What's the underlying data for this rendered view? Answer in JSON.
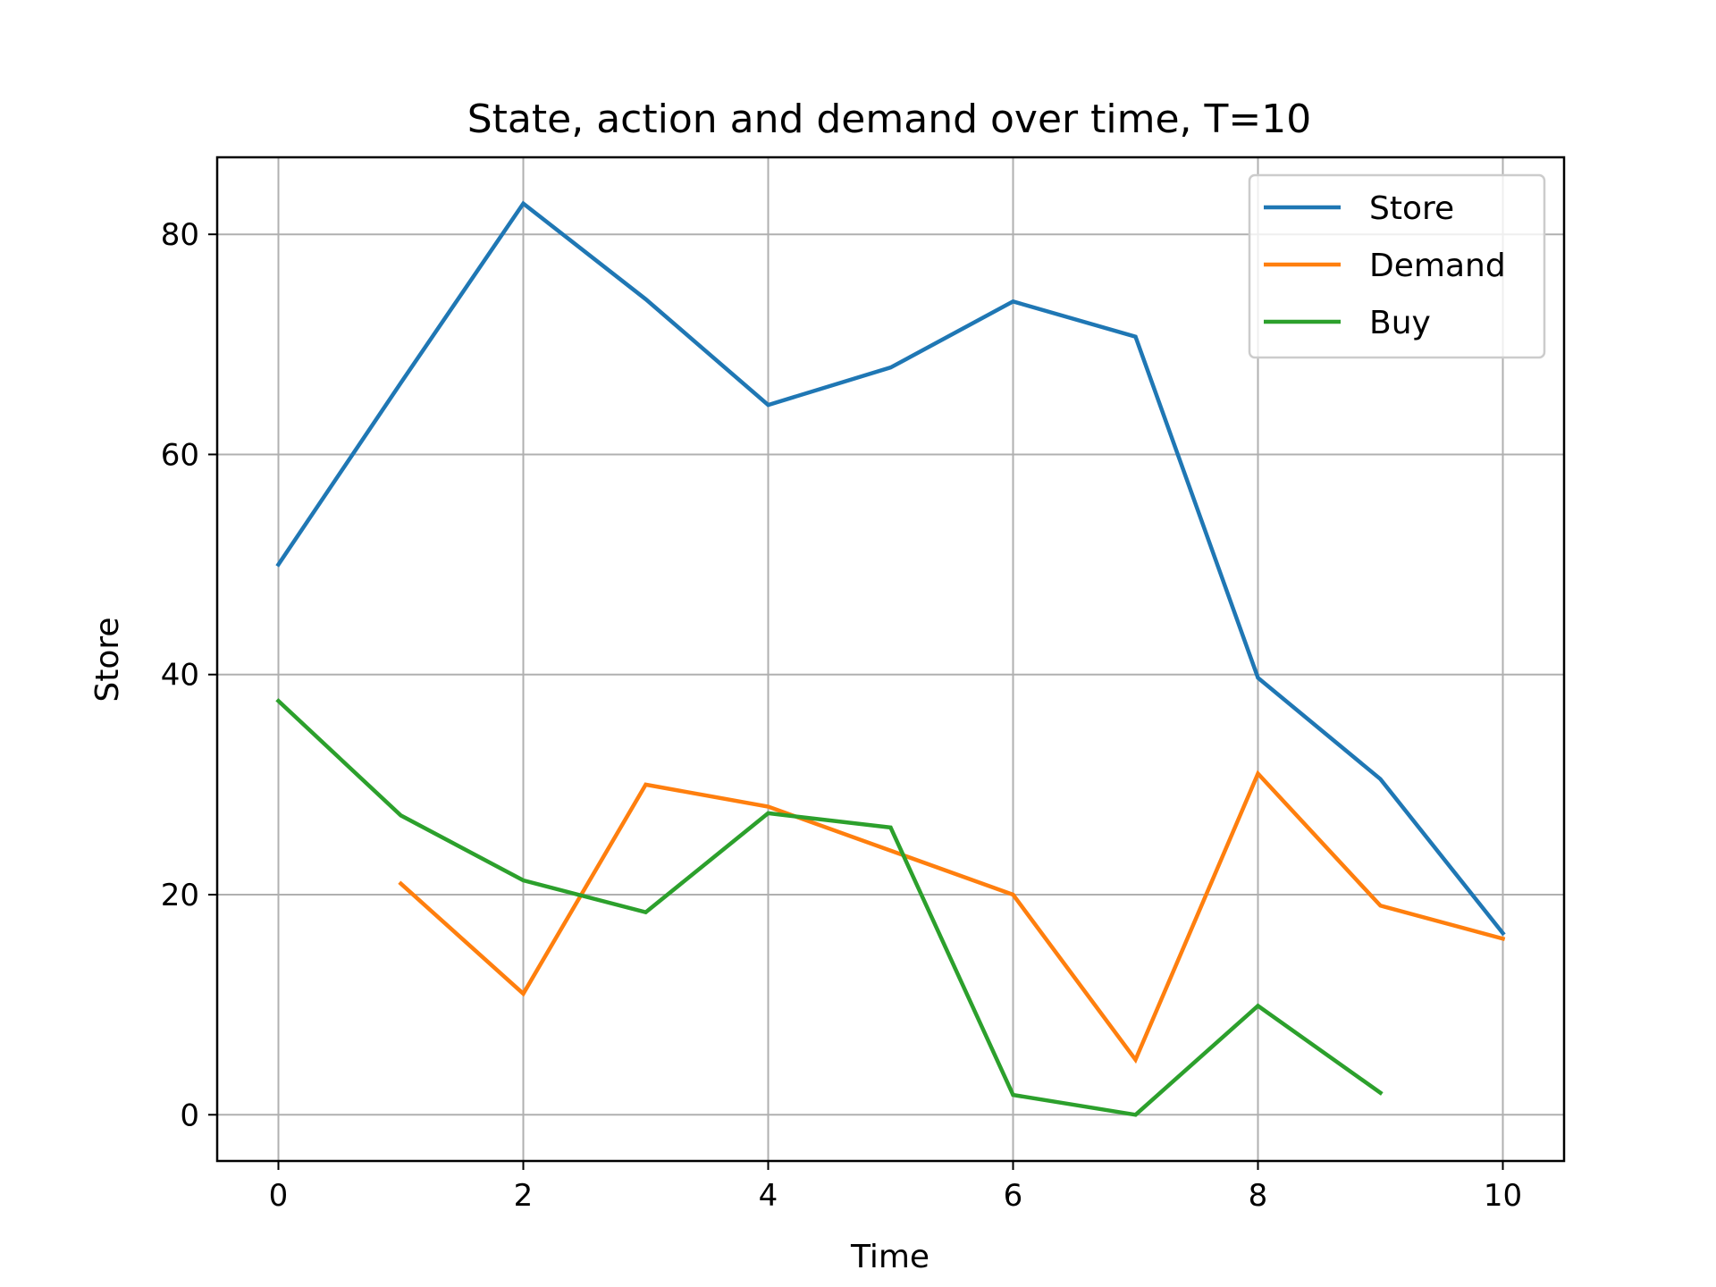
{
  "chart_data": {
    "type": "line",
    "title": "State, action and demand over time, T=10",
    "xlabel": "Time",
    "ylabel": "Store",
    "xlim": [
      -0.5,
      10.5
    ],
    "ylim": [
      -4.2,
      87.0
    ],
    "xticks": [
      0,
      2,
      4,
      6,
      8,
      10
    ],
    "yticks": [
      0,
      20,
      40,
      60,
      80
    ],
    "grid": true,
    "legend_position": "top-right",
    "series": [
      {
        "name": "Store",
        "color": "#1f77b4",
        "x": [
          0,
          1,
          2,
          3,
          4,
          5,
          6,
          7,
          8,
          9,
          10
        ],
        "y": [
          50,
          66.5,
          82.8,
          74.1,
          64.5,
          67.9,
          73.9,
          70.7,
          39.7,
          30.5,
          16.5
        ]
      },
      {
        "name": "Demand",
        "color": "#ff7f0e",
        "x": [
          1,
          2,
          3,
          4,
          5,
          6,
          7,
          8,
          9,
          10
        ],
        "y": [
          21,
          11,
          30,
          28,
          24,
          20,
          5,
          31,
          19,
          16
        ]
      },
      {
        "name": "Buy",
        "color": "#2ca02c",
        "x": [
          0,
          1,
          2,
          3,
          4,
          5,
          6,
          7,
          8,
          9
        ],
        "y": [
          37.6,
          27.2,
          21.3,
          18.4,
          27.4,
          26.1,
          1.8,
          0,
          9.9,
          2.0
        ]
      }
    ]
  }
}
